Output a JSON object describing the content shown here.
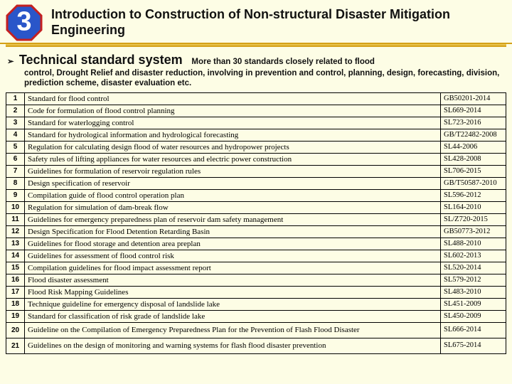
{
  "badge": {
    "number": "3"
  },
  "title": "Introduction to Construction of Non-structural Disaster Mitigation Engineering",
  "sub": {
    "lead": "Technical standard system",
    "rest1": "More than 30 standards closely related to flood",
    "rest2": "control, Drought Relief and disaster reduction, involving in prevention and control, planning, design, forecasting, division, prediction scheme, disaster evaluation etc."
  },
  "colors": {
    "badge_fill": "#2a56c9",
    "badge_stroke": "#c42020",
    "page_bg": "#fdfde5",
    "underline": "#d4a017"
  },
  "table": {
    "col_widths": {
      "num": 26,
      "desc": 586,
      "code": 92
    },
    "rows": [
      {
        "n": "1",
        "d": "Standard for flood control",
        "c": "GB50201-2014"
      },
      {
        "n": "2",
        "d": "Code for formulation of flood control planning",
        "c": "SL669-2014"
      },
      {
        "n": "3",
        "d": "Standard for waterlogging control",
        "c": "SL723-2016"
      },
      {
        "n": "4",
        "d": "Standard for hydrological information and hydrological forecasting",
        "c": "GB/T22482-2008"
      },
      {
        "n": "5",
        "d": "Regulation for calculating design flood of water resources and hydropower projects",
        "c": "SL44-2006"
      },
      {
        "n": "6",
        "d": "Safety rules of lifting appliances for water resources and electric power construction",
        "c": "SL428-2008"
      },
      {
        "n": "7",
        "d": "Guidelines for formulation of reservoir regulation rules",
        "c": "SL706-2015"
      },
      {
        "n": "8",
        "d": "Design specification of reservoir",
        "c": "GB/T50587-2010"
      },
      {
        "n": "9",
        "d": "Compilation guide of flood control operation plan",
        "c": "SL596-2012"
      },
      {
        "n": "10",
        "d": "Regulation for simulation of dam-break flow",
        "c": "SL164-2010"
      },
      {
        "n": "11",
        "d": "Guidelines for emergency preparedness plan of reservoir dam safety management",
        "c": "SL/Z720-2015"
      },
      {
        "n": "12",
        "d": "Design Specification for Flood Detention Retarding Basin",
        "c": "GB50773-2012"
      },
      {
        "n": "13",
        "d": "Guidelines for flood storage and detention area preplan",
        "c": "SL488-2010"
      },
      {
        "n": "14",
        "d": "Guidelines for assessment of flood control risk",
        "c": "SL602-2013"
      },
      {
        "n": "15",
        "d": "Compilation guidelines for flood impact assessment report",
        "c": "SL520-2014"
      },
      {
        "n": "16",
        "d": "Flood disaster assessment",
        "c": "SL579-2012"
      },
      {
        "n": "17",
        "d": "Flood Risk Mapping Guidelines",
        "c": "SL483-2010"
      },
      {
        "n": "18",
        "d": "Technique guideline for emergency disposal of landslide lake",
        "c": "SL451-2009"
      },
      {
        "n": "19",
        "d": "Standard for classification of risk grade of landslide lake",
        "c": "SL450-2009"
      },
      {
        "n": "20",
        "d": "Guideline on the Compilation of Emergency Preparedness Plan for the Prevention of Flash Flood Disaster",
        "c": "SL666-2014",
        "sep": true
      },
      {
        "n": "21",
        "d": "Guidelines on the design of monitoring and warning systems for flash flood disaster prevention",
        "c": "SL675-2014",
        "sep": true
      }
    ]
  }
}
